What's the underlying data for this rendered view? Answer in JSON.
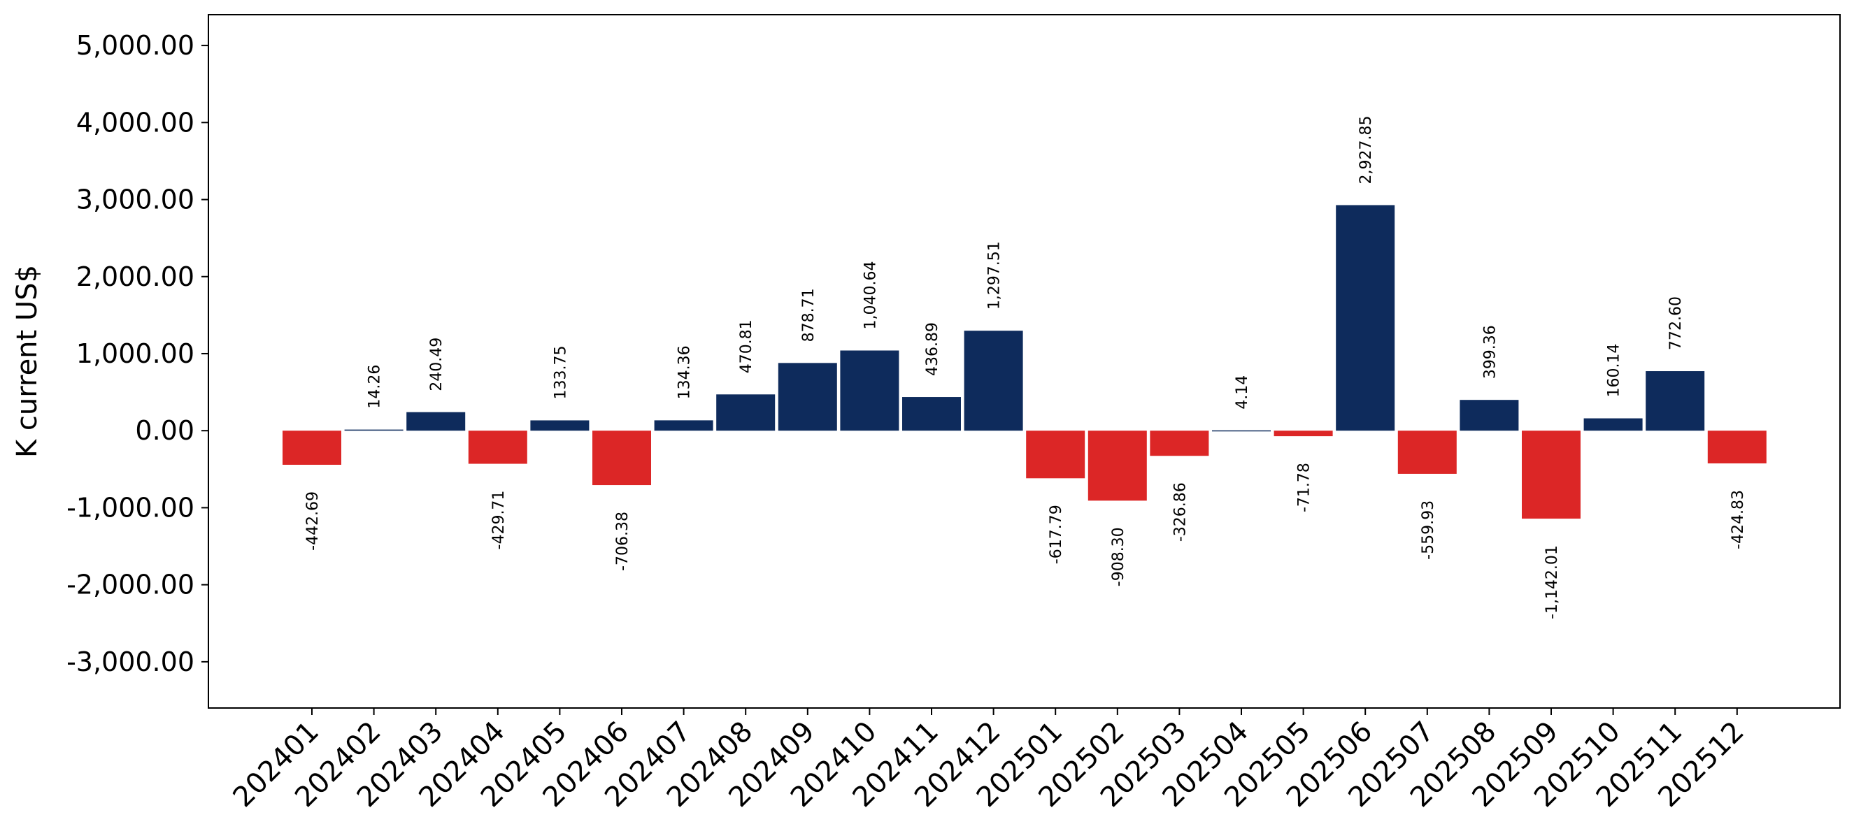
{
  "chart_data": {
    "type": "bar",
    "title": "",
    "xlabel": "",
    "ylabel": "K current US$",
    "ylim": [
      -3600,
      5400
    ],
    "yticks": [
      -3000,
      -2000,
      -1000,
      0,
      1000,
      2000,
      3000,
      4000,
      5000
    ],
    "ytick_labels": [
      "-3,000.00",
      "-2,000.00",
      "-1,000.00",
      "0.00",
      "1,000.00",
      "2,000.00",
      "3,000.00",
      "4,000.00",
      "5,000.00"
    ],
    "categories": [
      "202401",
      "202402",
      "202403",
      "202404",
      "202405",
      "202406",
      "202407",
      "202408",
      "202409",
      "202410",
      "202411",
      "202412",
      "202501",
      "202502",
      "202503",
      "202504",
      "202505",
      "202506",
      "202507",
      "202508",
      "202509",
      "202510",
      "202511",
      "202512"
    ],
    "values": [
      -442.69,
      14.26,
      240.49,
      -429.71,
      133.75,
      -706.38,
      134.36,
      470.81,
      878.71,
      1040.64,
      436.89,
      1297.51,
      -617.79,
      -908.3,
      -326.86,
      4.14,
      -71.78,
      2927.85,
      -559.93,
      399.36,
      -1142.01,
      160.14,
      772.6,
      -424.83
    ],
    "value_labels": [
      "-442.69",
      "14.26",
      "240.49",
      "-429.71",
      "133.75",
      "-706.38",
      "134.36",
      "470.81",
      "878.71",
      "1,040.64",
      "436.89",
      "1,297.51",
      "-617.79",
      "-908.30",
      "-326.86",
      "4.14",
      "-71.78",
      "2,927.85",
      "-559.93",
      "399.36",
      "-1,142.01",
      "160.14",
      "772.60",
      "-424.83"
    ],
    "colors": {
      "positive": "#0e2b5c",
      "negative": "#dc2626"
    },
    "grid": false,
    "legend": "none"
  }
}
